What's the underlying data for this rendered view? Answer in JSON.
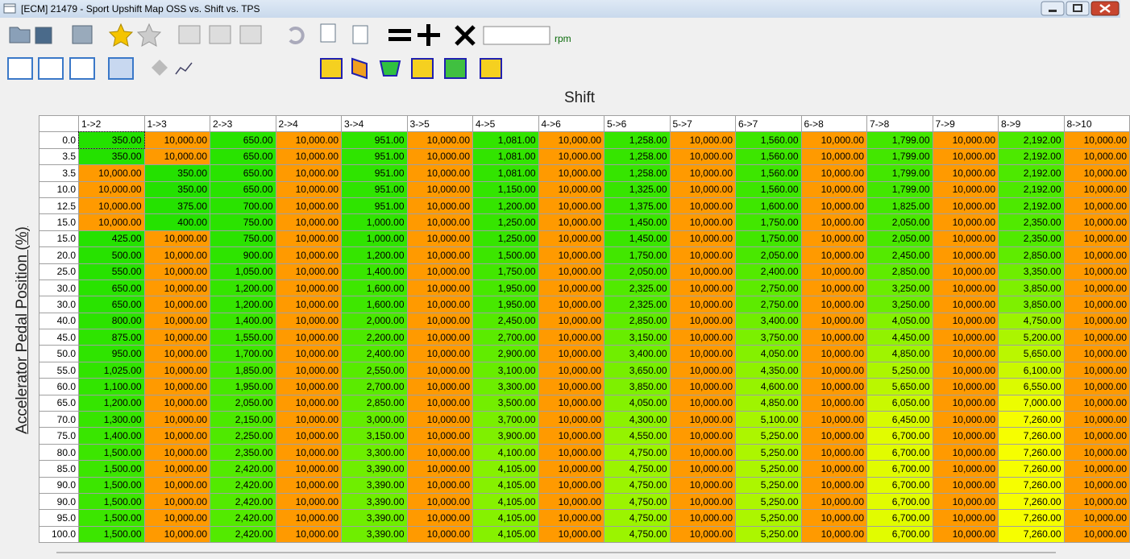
{
  "window": {
    "title": "[ECM] 21479 - Sport Upshift Map OSS vs. Shift vs. TPS"
  },
  "toolbar": {
    "unit_label": "rpm"
  },
  "table": {
    "column_title": "Shift",
    "row_title": "Accelerator Pedal Position (%)",
    "columns": [
      "1->2",
      "1->3",
      "2->3",
      "2->4",
      "3->4",
      "3->5",
      "4->5",
      "4->6",
      "5->6",
      "5->7",
      "6->7",
      "6->8",
      "7->8",
      "7->9",
      "8->9",
      "8->10"
    ],
    "row_labels": [
      "0.0",
      "3.5",
      "3.5",
      "10.0",
      "12.5",
      "15.0",
      "15.0",
      "20.0",
      "25.0",
      "30.0",
      "30.0",
      "40.0",
      "45.0",
      "50.0",
      "55.0",
      "60.0",
      "65.0",
      "70.0",
      "75.0",
      "80.0",
      "85.0",
      "90.0",
      "90.0",
      "95.0",
      "100.0"
    ],
    "rows": [
      [
        "350.00",
        "10,000.00",
        "650.00",
        "10,000.00",
        "951.00",
        "10,000.00",
        "1,081.00",
        "10,000.00",
        "1,258.00",
        "10,000.00",
        "1,560.00",
        "10,000.00",
        "1,799.00",
        "10,000.00",
        "2,192.00",
        "10,000.00"
      ],
      [
        "350.00",
        "10,000.00",
        "650.00",
        "10,000.00",
        "951.00",
        "10,000.00",
        "1,081.00",
        "10,000.00",
        "1,258.00",
        "10,000.00",
        "1,560.00",
        "10,000.00",
        "1,799.00",
        "10,000.00",
        "2,192.00",
        "10,000.00"
      ],
      [
        "10,000.00",
        "350.00",
        "650.00",
        "10,000.00",
        "951.00",
        "10,000.00",
        "1,081.00",
        "10,000.00",
        "1,258.00",
        "10,000.00",
        "1,560.00",
        "10,000.00",
        "1,799.00",
        "10,000.00",
        "2,192.00",
        "10,000.00"
      ],
      [
        "10,000.00",
        "350.00",
        "650.00",
        "10,000.00",
        "951.00",
        "10,000.00",
        "1,150.00",
        "10,000.00",
        "1,325.00",
        "10,000.00",
        "1,560.00",
        "10,000.00",
        "1,799.00",
        "10,000.00",
        "2,192.00",
        "10,000.00"
      ],
      [
        "10,000.00",
        "375.00",
        "700.00",
        "10,000.00",
        "951.00",
        "10,000.00",
        "1,200.00",
        "10,000.00",
        "1,375.00",
        "10,000.00",
        "1,600.00",
        "10,000.00",
        "1,825.00",
        "10,000.00",
        "2,192.00",
        "10,000.00"
      ],
      [
        "10,000.00",
        "400.00",
        "750.00",
        "10,000.00",
        "1,000.00",
        "10,000.00",
        "1,250.00",
        "10,000.00",
        "1,450.00",
        "10,000.00",
        "1,750.00",
        "10,000.00",
        "2,050.00",
        "10,000.00",
        "2,350.00",
        "10,000.00"
      ],
      [
        "425.00",
        "10,000.00",
        "750.00",
        "10,000.00",
        "1,000.00",
        "10,000.00",
        "1,250.00",
        "10,000.00",
        "1,450.00",
        "10,000.00",
        "1,750.00",
        "10,000.00",
        "2,050.00",
        "10,000.00",
        "2,350.00",
        "10,000.00"
      ],
      [
        "500.00",
        "10,000.00",
        "900.00",
        "10,000.00",
        "1,200.00",
        "10,000.00",
        "1,500.00",
        "10,000.00",
        "1,750.00",
        "10,000.00",
        "2,050.00",
        "10,000.00",
        "2,450.00",
        "10,000.00",
        "2,850.00",
        "10,000.00"
      ],
      [
        "550.00",
        "10,000.00",
        "1,050.00",
        "10,000.00",
        "1,400.00",
        "10,000.00",
        "1,750.00",
        "10,000.00",
        "2,050.00",
        "10,000.00",
        "2,400.00",
        "10,000.00",
        "2,850.00",
        "10,000.00",
        "3,350.00",
        "10,000.00"
      ],
      [
        "650.00",
        "10,000.00",
        "1,200.00",
        "10,000.00",
        "1,600.00",
        "10,000.00",
        "1,950.00",
        "10,000.00",
        "2,325.00",
        "10,000.00",
        "2,750.00",
        "10,000.00",
        "3,250.00",
        "10,000.00",
        "3,850.00",
        "10,000.00"
      ],
      [
        "650.00",
        "10,000.00",
        "1,200.00",
        "10,000.00",
        "1,600.00",
        "10,000.00",
        "1,950.00",
        "10,000.00",
        "2,325.00",
        "10,000.00",
        "2,750.00",
        "10,000.00",
        "3,250.00",
        "10,000.00",
        "3,850.00",
        "10,000.00"
      ],
      [
        "800.00",
        "10,000.00",
        "1,400.00",
        "10,000.00",
        "2,000.00",
        "10,000.00",
        "2,450.00",
        "10,000.00",
        "2,850.00",
        "10,000.00",
        "3,400.00",
        "10,000.00",
        "4,050.00",
        "10,000.00",
        "4,750.00",
        "10,000.00"
      ],
      [
        "875.00",
        "10,000.00",
        "1,550.00",
        "10,000.00",
        "2,200.00",
        "10,000.00",
        "2,700.00",
        "10,000.00",
        "3,150.00",
        "10,000.00",
        "3,750.00",
        "10,000.00",
        "4,450.00",
        "10,000.00",
        "5,200.00",
        "10,000.00"
      ],
      [
        "950.00",
        "10,000.00",
        "1,700.00",
        "10,000.00",
        "2,400.00",
        "10,000.00",
        "2,900.00",
        "10,000.00",
        "3,400.00",
        "10,000.00",
        "4,050.00",
        "10,000.00",
        "4,850.00",
        "10,000.00",
        "5,650.00",
        "10,000.00"
      ],
      [
        "1,025.00",
        "10,000.00",
        "1,850.00",
        "10,000.00",
        "2,550.00",
        "10,000.00",
        "3,100.00",
        "10,000.00",
        "3,650.00",
        "10,000.00",
        "4,350.00",
        "10,000.00",
        "5,250.00",
        "10,000.00",
        "6,100.00",
        "10,000.00"
      ],
      [
        "1,100.00",
        "10,000.00",
        "1,950.00",
        "10,000.00",
        "2,700.00",
        "10,000.00",
        "3,300.00",
        "10,000.00",
        "3,850.00",
        "10,000.00",
        "4,600.00",
        "10,000.00",
        "5,650.00",
        "10,000.00",
        "6,550.00",
        "10,000.00"
      ],
      [
        "1,200.00",
        "10,000.00",
        "2,050.00",
        "10,000.00",
        "2,850.00",
        "10,000.00",
        "3,500.00",
        "10,000.00",
        "4,050.00",
        "10,000.00",
        "4,850.00",
        "10,000.00",
        "6,050.00",
        "10,000.00",
        "7,000.00",
        "10,000.00"
      ],
      [
        "1,300.00",
        "10,000.00",
        "2,150.00",
        "10,000.00",
        "3,000.00",
        "10,000.00",
        "3,700.00",
        "10,000.00",
        "4,300.00",
        "10,000.00",
        "5,100.00",
        "10,000.00",
        "6,450.00",
        "10,000.00",
        "7,260.00",
        "10,000.00"
      ],
      [
        "1,400.00",
        "10,000.00",
        "2,250.00",
        "10,000.00",
        "3,150.00",
        "10,000.00",
        "3,900.00",
        "10,000.00",
        "4,550.00",
        "10,000.00",
        "5,250.00",
        "10,000.00",
        "6,700.00",
        "10,000.00",
        "7,260.00",
        "10,000.00"
      ],
      [
        "1,500.00",
        "10,000.00",
        "2,350.00",
        "10,000.00",
        "3,300.00",
        "10,000.00",
        "4,100.00",
        "10,000.00",
        "4,750.00",
        "10,000.00",
        "5,250.00",
        "10,000.00",
        "6,700.00",
        "10,000.00",
        "7,260.00",
        "10,000.00"
      ],
      [
        "1,500.00",
        "10,000.00",
        "2,420.00",
        "10,000.00",
        "3,390.00",
        "10,000.00",
        "4,105.00",
        "10,000.00",
        "4,750.00",
        "10,000.00",
        "5,250.00",
        "10,000.00",
        "6,700.00",
        "10,000.00",
        "7,260.00",
        "10,000.00"
      ],
      [
        "1,500.00",
        "10,000.00",
        "2,420.00",
        "10,000.00",
        "3,390.00",
        "10,000.00",
        "4,105.00",
        "10,000.00",
        "4,750.00",
        "10,000.00",
        "5,250.00",
        "10,000.00",
        "6,700.00",
        "10,000.00",
        "7,260.00",
        "10,000.00"
      ],
      [
        "1,500.00",
        "10,000.00",
        "2,420.00",
        "10,000.00",
        "3,390.00",
        "10,000.00",
        "4,105.00",
        "10,000.00",
        "4,750.00",
        "10,000.00",
        "5,250.00",
        "10,000.00",
        "6,700.00",
        "10,000.00",
        "7,260.00",
        "10,000.00"
      ],
      [
        "1,500.00",
        "10,000.00",
        "2,420.00",
        "10,000.00",
        "3,390.00",
        "10,000.00",
        "4,105.00",
        "10,000.00",
        "4,750.00",
        "10,000.00",
        "5,250.00",
        "10,000.00",
        "6,700.00",
        "10,000.00",
        "7,260.00",
        "10,000.00"
      ],
      [
        "1,500.00",
        "10,000.00",
        "2,420.00",
        "10,000.00",
        "3,390.00",
        "10,000.00",
        "4,105.00",
        "10,000.00",
        "4,750.00",
        "10,000.00",
        "5,250.00",
        "10,000.00",
        "6,700.00",
        "10,000.00",
        "7,260.00",
        "10,000.00"
      ]
    ]
  }
}
